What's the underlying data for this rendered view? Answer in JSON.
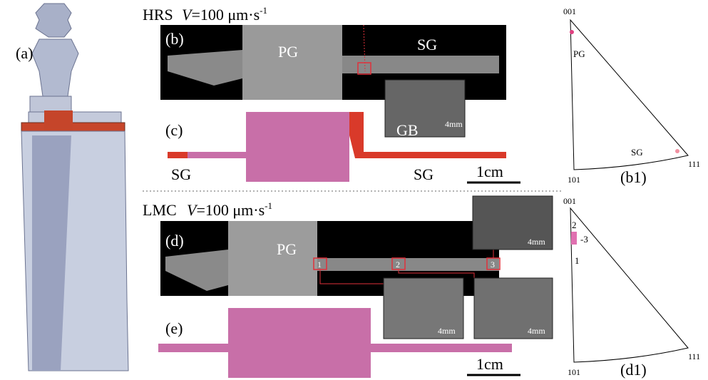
{
  "panel_a": {
    "label": "(a)"
  },
  "top": {
    "method": "HRS",
    "velocity": {
      "symbol": "V",
      "text": "=100 μm·s",
      "exponent": "-1"
    },
    "panel_b": {
      "label": "(b)",
      "pg": "PG",
      "sg": "SG",
      "gb": "GB",
      "inset_scale": "4mm"
    },
    "panel_c": {
      "label": "(c)",
      "sg_left": "SG",
      "sg_right": "SG",
      "scale": "1cm"
    },
    "panel_b1": {
      "label": "(b1)",
      "corner_001": "001",
      "corner_101": "101",
      "corner_111": "111",
      "pg": "PG",
      "sg": "SG"
    }
  },
  "bottom": {
    "method": "LMC",
    "velocity": {
      "symbol": "V",
      "text": "=100 μm·s",
      "exponent": "-1"
    },
    "panel_d": {
      "label": "(d)",
      "pg": "PG",
      "marker_1": "1",
      "marker_2": "2",
      "marker_3": "3",
      "inset_scales": [
        "4mm",
        "4mm",
        "4mm"
      ]
    },
    "panel_e": {
      "label": "(e)",
      "scale": "1cm"
    },
    "panel_d1": {
      "label": "(d1)",
      "corner_001": "001",
      "corner_101": "101",
      "corner_111": "111",
      "point_1": "1",
      "point_2": "2",
      "point_3": "-3"
    }
  }
}
